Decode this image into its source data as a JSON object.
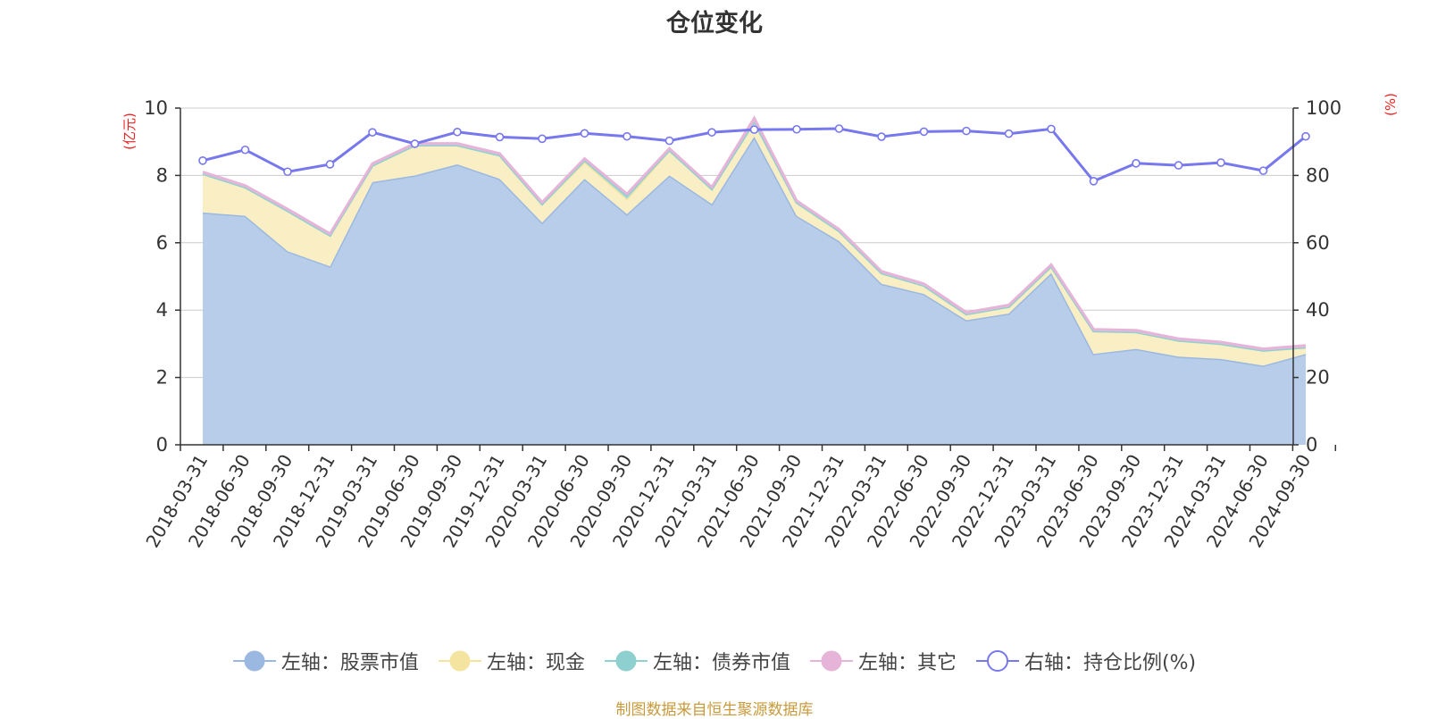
{
  "chart_data": {
    "type": "area",
    "title": "仓位变化",
    "left_axis_unit": "(亿元)",
    "right_axis_unit": "(%)",
    "left_ylim": [
      0,
      10
    ],
    "right_ylim": [
      0,
      100
    ],
    "left_ticks": [
      0,
      2,
      4,
      6,
      8,
      10
    ],
    "right_ticks": [
      0,
      20,
      40,
      60,
      80,
      100
    ],
    "grid": true,
    "legend_position": "bottom",
    "categories": [
      "2018-03-31",
      "2018-06-30",
      "2018-09-30",
      "2018-12-31",
      "2019-03-31",
      "2019-06-30",
      "2019-09-30",
      "2019-12-31",
      "2020-03-31",
      "2020-06-30",
      "2020-09-30",
      "2020-12-31",
      "2021-03-31",
      "2021-06-30",
      "2021-09-30",
      "2021-12-31",
      "2022-03-31",
      "2022-06-30",
      "2022-09-30",
      "2022-12-31",
      "2023-03-31",
      "2023-06-30",
      "2023-09-30",
      "2023-12-31",
      "2024-03-31",
      "2024-06-30",
      "2024-09-30"
    ],
    "series": [
      {
        "name": "左轴：股票市值",
        "axis": "left",
        "stack": true,
        "color": "#9ab8e0",
        "fill": "#b8cdea",
        "values": [
          6.9,
          6.8,
          5.75,
          5.3,
          7.8,
          8.0,
          8.33,
          7.9,
          6.6,
          7.9,
          6.85,
          8.0,
          7.15,
          9.15,
          6.8,
          6.05,
          4.78,
          4.48,
          3.7,
          3.9,
          5.1,
          2.7,
          2.85,
          2.62,
          2.55,
          2.35,
          2.7
        ]
      },
      {
        "name": "左轴：现金",
        "axis": "left",
        "stack": true,
        "color": "#f5e4a0",
        "fill": "#faefc4",
        "values": [
          1.15,
          0.85,
          1.2,
          0.92,
          0.5,
          0.9,
          0.57,
          0.7,
          0.55,
          0.5,
          0.45,
          0.75,
          0.45,
          0.45,
          0.4,
          0.3,
          0.32,
          0.25,
          0.18,
          0.2,
          0.2,
          0.68,
          0.5,
          0.48,
          0.45,
          0.45,
          0.2
        ]
      },
      {
        "name": "左轴：债券市值",
        "axis": "left",
        "stack": true,
        "color": "#8ecfd0",
        "fill": "#a8dbdb",
        "values": [
          0,
          0,
          0,
          0,
          0,
          0,
          0,
          0,
          0,
          0.05,
          0.1,
          0,
          0,
          0,
          0,
          0,
          0,
          0,
          0,
          0,
          0,
          0,
          0,
          0,
          0,
          0,
          0
        ]
      },
      {
        "name": "左轴：其它",
        "axis": "left",
        "stack": true,
        "color": "#e6b4d8",
        "fill": "#ecc4e0",
        "values": [
          0.05,
          0.05,
          0.05,
          0.05,
          0.05,
          0.05,
          0.05,
          0.05,
          0.05,
          0.05,
          0.05,
          0.05,
          0.05,
          0.1,
          0.05,
          0.05,
          0.05,
          0.05,
          0.05,
          0.05,
          0.05,
          0.05,
          0.05,
          0.05,
          0.05,
          0.05,
          0.05
        ]
      },
      {
        "name": "右轴：持仓比例(%)",
        "axis": "right",
        "stack": false,
        "color": "#7777ee",
        "values": [
          84.4,
          87.6,
          81.1,
          83.3,
          92.8,
          89.4,
          92.9,
          91.4,
          90.9,
          92.5,
          91.6,
          90.3,
          92.8,
          93.6,
          93.7,
          93.9,
          91.5,
          93.0,
          93.2,
          92.4,
          93.8,
          78.3,
          83.6,
          83.0,
          83.8,
          81.4,
          91.6
        ]
      }
    ]
  },
  "source": "制图数据来自恒生聚源数据库"
}
